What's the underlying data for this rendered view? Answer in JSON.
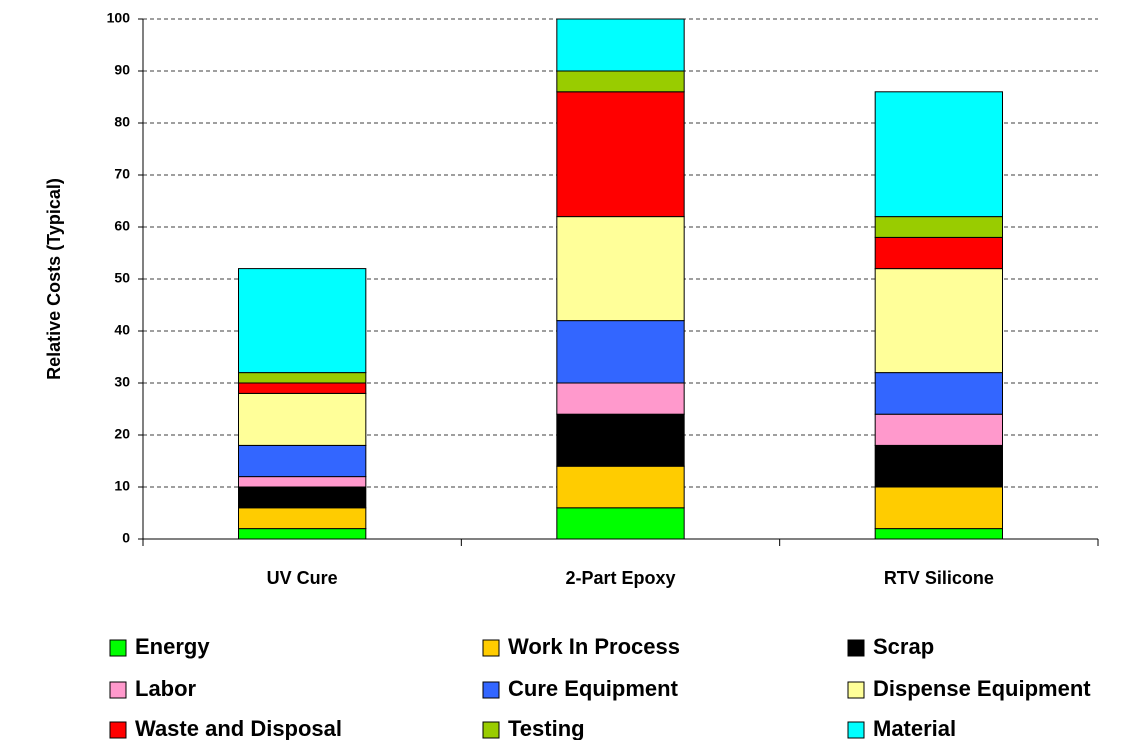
{
  "chart_data": {
    "type": "stacked_bar",
    "y_axis_label": "Relative Costs (Typical)",
    "categories": [
      "UV Cure",
      "2-Part Epoxy",
      "RTV Silicone"
    ],
    "series": [
      {
        "name": "Energy",
        "color": "#00ff00",
        "values": [
          2,
          6,
          2
        ]
      },
      {
        "name": "Work In Process",
        "color": "#ffcc00",
        "values": [
          4,
          8,
          8
        ]
      },
      {
        "name": "Scrap",
        "color": "#000000",
        "values": [
          4,
          10,
          8
        ]
      },
      {
        "name": "Labor",
        "color": "#ff99cc",
        "values": [
          2,
          6,
          6
        ]
      },
      {
        "name": "Cure Equipment",
        "color": "#3366ff",
        "values": [
          6,
          12,
          8
        ]
      },
      {
        "name": "Dispense Equipment",
        "color": "#ffff99",
        "values": [
          10,
          20,
          20
        ]
      },
      {
        "name": "Waste and Disposal",
        "color": "#ff0000",
        "values": [
          2,
          24,
          6
        ]
      },
      {
        "name": "Testing",
        "color": "#99cc00",
        "values": [
          2,
          4,
          4
        ]
      },
      {
        "name": "Material",
        "color": "#00ffff",
        "values": [
          20,
          10,
          24
        ]
      }
    ],
    "ylim": [
      0,
      100
    ],
    "yticks": [
      0,
      10,
      20,
      30,
      40,
      50,
      60,
      70,
      80,
      90,
      100
    ],
    "grid": true,
    "legend": "bottom"
  }
}
